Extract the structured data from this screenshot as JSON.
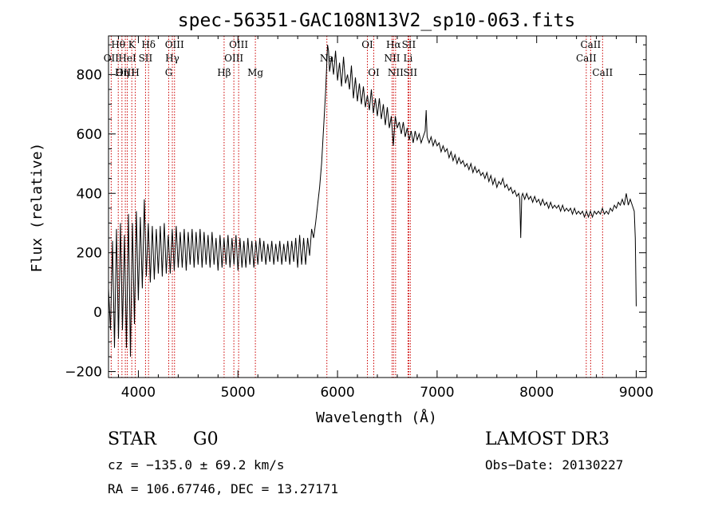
{
  "chart_data": {
    "type": "line",
    "title": "spec-56351-GAC108N13V2_sp10-063.fits",
    "xlabel": "Wavelength (Å)",
    "ylabel": "Flux (relative)",
    "xlim": [
      3700,
      9100
    ],
    "ylim": [
      -220,
      930
    ],
    "x_ticks": [
      {
        "value": 4000,
        "label": "4000"
      },
      {
        "value": 5000,
        "label": "5000"
      },
      {
        "value": 6000,
        "label": "6000"
      },
      {
        "value": 7000,
        "label": "7000"
      },
      {
        "value": 8000,
        "label": "8000"
      },
      {
        "value": 9000,
        "label": "9000"
      }
    ],
    "y_ticks": [
      {
        "value": -200,
        "label": "−200"
      },
      {
        "value": 0,
        "label": "0"
      },
      {
        "value": 200,
        "label": "200"
      },
      {
        "value": 400,
        "label": "400"
      },
      {
        "value": 600,
        "label": "600"
      },
      {
        "value": 800,
        "label": "800"
      }
    ],
    "lines": [
      {
        "label": "Hθ",
        "x": 3798,
        "row": 0
      },
      {
        "label": "OII",
        "x": 3727,
        "row": 1
      },
      {
        "label": "Hη",
        "x": 3835,
        "row": 2
      },
      {
        "label": "OIII",
        "x": 3869,
        "row": 2
      },
      {
        "label": "HeI",
        "x": 3889,
        "row": 1
      },
      {
        "label": "K",
        "x": 3934,
        "row": 0
      },
      {
        "label": "H",
        "x": 3969,
        "row": 2
      },
      {
        "label": "SII",
        "x": 4072,
        "row": 1
      },
      {
        "label": "Hδ",
        "x": 4102,
        "row": 0
      },
      {
        "label": "OIII",
        "x": 4363,
        "row": 0
      },
      {
        "label": "Hγ",
        "x": 4341,
        "row": 1
      },
      {
        "label": "G",
        "x": 4305,
        "row": 2
      },
      {
        "label": "Hβ",
        "x": 4861,
        "row": 2
      },
      {
        "label": "OIII",
        "x": 5007,
        "row": 0
      },
      {
        "label": "OIII",
        "x": 4959,
        "row": 1
      },
      {
        "label": "Mg",
        "x": 5175,
        "row": 2
      },
      {
        "label": "Na",
        "x": 5893,
        "row": 1
      },
      {
        "label": "OI",
        "x": 6300,
        "row": 0
      },
      {
        "label": "OI",
        "x": 6364,
        "row": 2
      },
      {
        "label": "Hα",
        "x": 6563,
        "row": 0
      },
      {
        "label": "NII",
        "x": 6548,
        "row": 1
      },
      {
        "label": "NII",
        "x": 6583,
        "row": 2
      },
      {
        "label": "SII",
        "x": 6716,
        "row": 0
      },
      {
        "label": "Li",
        "x": 6708,
        "row": 1
      },
      {
        "label": "SII",
        "x": 6731,
        "row": 2
      },
      {
        "label": "CaII",
        "x": 8542,
        "row": 0
      },
      {
        "label": "CaII",
        "x": 8498,
        "row": 1
      },
      {
        "label": "CaII",
        "x": 8662,
        "row": 2
      }
    ],
    "series": [
      {
        "name": "flux",
        "points": [
          [
            3700,
            80
          ],
          [
            3720,
            -60
          ],
          [
            3740,
            240
          ],
          [
            3760,
            -120
          ],
          [
            3780,
            280
          ],
          [
            3800,
            -90
          ],
          [
            3820,
            300
          ],
          [
            3840,
            -60
          ],
          [
            3860,
            260
          ],
          [
            3880,
            -120
          ],
          [
            3900,
            330
          ],
          [
            3920,
            -150
          ],
          [
            3940,
            300
          ],
          [
            3960,
            -40
          ],
          [
            3980,
            340
          ],
          [
            4000,
            40
          ],
          [
            4020,
            320
          ],
          [
            4040,
            80
          ],
          [
            4060,
            380
          ],
          [
            4080,
            120
          ],
          [
            4100,
            300
          ],
          [
            4120,
            100
          ],
          [
            4140,
            290
          ],
          [
            4160,
            110
          ],
          [
            4180,
            280
          ],
          [
            4200,
            130
          ],
          [
            4220,
            290
          ],
          [
            4240,
            120
          ],
          [
            4260,
            300
          ],
          [
            4280,
            130
          ],
          [
            4300,
            260
          ],
          [
            4320,
            130
          ],
          [
            4340,
            280
          ],
          [
            4360,
            140
          ],
          [
            4380,
            290
          ],
          [
            4400,
            150
          ],
          [
            4420,
            270
          ],
          [
            4440,
            150
          ],
          [
            4460,
            280
          ],
          [
            4480,
            140
          ],
          [
            4500,
            270
          ],
          [
            4520,
            160
          ],
          [
            4540,
            280
          ],
          [
            4560,
            150
          ],
          [
            4580,
            270
          ],
          [
            4600,
            160
          ],
          [
            4620,
            280
          ],
          [
            4640,
            150
          ],
          [
            4660,
            270
          ],
          [
            4680,
            160
          ],
          [
            4700,
            260
          ],
          [
            4720,
            150
          ],
          [
            4740,
            270
          ],
          [
            4760,
            160
          ],
          [
            4780,
            250
          ],
          [
            4800,
            140
          ],
          [
            4820,
            260
          ],
          [
            4840,
            150
          ],
          [
            4860,
            250
          ],
          [
            4880,
            160
          ],
          [
            4900,
            260
          ],
          [
            4920,
            150
          ],
          [
            4940,
            250
          ],
          [
            4960,
            160
          ],
          [
            4980,
            260
          ],
          [
            5000,
            140
          ],
          [
            5020,
            250
          ],
          [
            5040,
            150
          ],
          [
            5060,
            240
          ],
          [
            5080,
            150
          ],
          [
            5100,
            250
          ],
          [
            5120,
            160
          ],
          [
            5140,
            240
          ],
          [
            5160,
            150
          ],
          [
            5180,
            240
          ],
          [
            5200,
            160
          ],
          [
            5220,
            250
          ],
          [
            5240,
            170
          ],
          [
            5260,
            240
          ],
          [
            5280,
            160
          ],
          [
            5300,
            230
          ],
          [
            5320,
            170
          ],
          [
            5340,
            240
          ],
          [
            5360,
            160
          ],
          [
            5380,
            230
          ],
          [
            5400,
            170
          ],
          [
            5420,
            240
          ],
          [
            5440,
            160
          ],
          [
            5460,
            230
          ],
          [
            5480,
            170
          ],
          [
            5500,
            240
          ],
          [
            5520,
            160
          ],
          [
            5540,
            240
          ],
          [
            5560,
            170
          ],
          [
            5580,
            250
          ],
          [
            5600,
            150
          ],
          [
            5620,
            260
          ],
          [
            5640,
            160
          ],
          [
            5660,
            250
          ],
          [
            5680,
            160
          ],
          [
            5700,
            250
          ],
          [
            5720,
            190
          ],
          [
            5740,
            280
          ],
          [
            5760,
            250
          ],
          [
            5780,
            300
          ],
          [
            5800,
            360
          ],
          [
            5820,
            420
          ],
          [
            5840,
            500
          ],
          [
            5860,
            620
          ],
          [
            5880,
            740
          ],
          [
            5900,
            900
          ],
          [
            5910,
            880
          ],
          [
            5920,
            810
          ],
          [
            5940,
            860
          ],
          [
            5960,
            800
          ],
          [
            5980,
            880
          ],
          [
            6000,
            780
          ],
          [
            6020,
            840
          ],
          [
            6040,
            760
          ],
          [
            6060,
            860
          ],
          [
            6080,
            770
          ],
          [
            6100,
            800
          ],
          [
            6120,
            750
          ],
          [
            6140,
            830
          ],
          [
            6160,
            720
          ],
          [
            6180,
            790
          ],
          [
            6200,
            710
          ],
          [
            6220,
            770
          ],
          [
            6240,
            700
          ],
          [
            6260,
            760
          ],
          [
            6280,
            690
          ],
          [
            6300,
            730
          ],
          [
            6320,
            680
          ],
          [
            6340,
            750
          ],
          [
            6360,
            670
          ],
          [
            6380,
            720
          ],
          [
            6400,
            660
          ],
          [
            6420,
            720
          ],
          [
            6440,
            650
          ],
          [
            6460,
            700
          ],
          [
            6480,
            630
          ],
          [
            6500,
            690
          ],
          [
            6520,
            620
          ],
          [
            6540,
            660
          ],
          [
            6560,
            560
          ],
          [
            6580,
            660
          ],
          [
            6600,
            620
          ],
          [
            6620,
            640
          ],
          [
            6640,
            600
          ],
          [
            6660,
            640
          ],
          [
            6680,
            590
          ],
          [
            6700,
            620
          ],
          [
            6720,
            580
          ],
          [
            6740,
            610
          ],
          [
            6760,
            570
          ],
          [
            6780,
            610
          ],
          [
            6800,
            580
          ],
          [
            6820,
            600
          ],
          [
            6840,
            570
          ],
          [
            6860,
            590
          ],
          [
            6880,
            610
          ],
          [
            6890,
            680
          ],
          [
            6900,
            590
          ],
          [
            6920,
            570
          ],
          [
            6940,
            590
          ],
          [
            6960,
            560
          ],
          [
            6980,
            580
          ],
          [
            7000,
            560
          ],
          [
            7020,
            570
          ],
          [
            7040,
            540
          ],
          [
            7060,
            560
          ],
          [
            7080,
            540
          ],
          [
            7100,
            550
          ],
          [
            7120,
            520
          ],
          [
            7140,
            540
          ],
          [
            7160,
            510
          ],
          [
            7180,
            530
          ],
          [
            7200,
            500
          ],
          [
            7220,
            520
          ],
          [
            7240,
            500
          ],
          [
            7260,
            510
          ],
          [
            7280,
            490
          ],
          [
            7300,
            500
          ],
          [
            7320,
            480
          ],
          [
            7340,
            500
          ],
          [
            7360,
            470
          ],
          [
            7380,
            490
          ],
          [
            7400,
            470
          ],
          [
            7420,
            480
          ],
          [
            7440,
            460
          ],
          [
            7460,
            470
          ],
          [
            7480,
            450
          ],
          [
            7500,
            470
          ],
          [
            7520,
            440
          ],
          [
            7540,
            460
          ],
          [
            7560,
            430
          ],
          [
            7580,
            450
          ],
          [
            7600,
            420
          ],
          [
            7620,
            440
          ],
          [
            7640,
            430
          ],
          [
            7660,
            450
          ],
          [
            7680,
            420
          ],
          [
            7700,
            430
          ],
          [
            7720,
            410
          ],
          [
            7740,
            420
          ],
          [
            7760,
            400
          ],
          [
            7780,
            410
          ],
          [
            7800,
            390
          ],
          [
            7820,
            400
          ],
          [
            7830,
            380
          ],
          [
            7840,
            250
          ],
          [
            7850,
            390
          ],
          [
            7860,
            400
          ],
          [
            7880,
            380
          ],
          [
            7900,
            400
          ],
          [
            7920,
            380
          ],
          [
            7940,
            390
          ],
          [
            7960,
            370
          ],
          [
            7980,
            390
          ],
          [
            8000,
            370
          ],
          [
            8020,
            380
          ],
          [
            8040,
            360
          ],
          [
            8060,
            380
          ],
          [
            8080,
            360
          ],
          [
            8100,
            370
          ],
          [
            8120,
            350
          ],
          [
            8140,
            370
          ],
          [
            8160,
            350
          ],
          [
            8180,
            360
          ],
          [
            8200,
            350
          ],
          [
            8220,
            360
          ],
          [
            8240,
            340
          ],
          [
            8260,
            360
          ],
          [
            8280,
            340
          ],
          [
            8300,
            350
          ],
          [
            8320,
            340
          ],
          [
            8340,
            350
          ],
          [
            8360,
            330
          ],
          [
            8380,
            350
          ],
          [
            8400,
            330
          ],
          [
            8420,
            340
          ],
          [
            8440,
            330
          ],
          [
            8460,
            340
          ],
          [
            8480,
            320
          ],
          [
            8500,
            340
          ],
          [
            8520,
            320
          ],
          [
            8540,
            340
          ],
          [
            8560,
            320
          ],
          [
            8580,
            340
          ],
          [
            8600,
            330
          ],
          [
            8620,
            340
          ],
          [
            8640,
            330
          ],
          [
            8660,
            350
          ],
          [
            8680,
            330
          ],
          [
            8700,
            340
          ],
          [
            8720,
            330
          ],
          [
            8740,
            350
          ],
          [
            8760,
            340
          ],
          [
            8780,
            360
          ],
          [
            8800,
            350
          ],
          [
            8820,
            370
          ],
          [
            8840,
            360
          ],
          [
            8860,
            380
          ],
          [
            8880,
            360
          ],
          [
            8900,
            400
          ],
          [
            8920,
            360
          ],
          [
            8940,
            380
          ],
          [
            8960,
            360
          ],
          [
            8980,
            340
          ],
          [
            8990,
            250
          ],
          [
            9000,
            20
          ]
        ]
      }
    ]
  },
  "info": {
    "object_type": "STAR",
    "subclass": "G0",
    "survey": "LAMOST DR3",
    "cz": "cz = −135.0 ± 69.2 km/s",
    "obs_date": "Obs−Date: 20130227",
    "coords": "RA = 106.67746, DEC =  13.27171"
  }
}
